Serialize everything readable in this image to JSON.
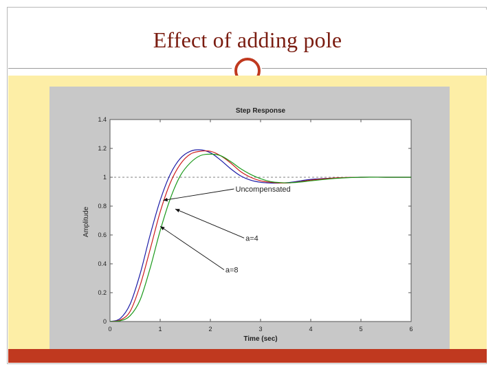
{
  "slide": {
    "title": "Effect of adding pole"
  },
  "colors": {
    "title": "#7a1c10",
    "accent": "#c0391f",
    "band": "#fdeea6",
    "figure_bg": "#c8c8c8"
  },
  "chart_data": {
    "type": "line",
    "title": "Step Response",
    "xlabel": "Time (sec)",
    "ylabel": "Amplitude",
    "xlim": [
      0,
      6
    ],
    "ylim": [
      0,
      1.4
    ],
    "xticks": [
      "0",
      "1",
      "2",
      "3",
      "4",
      "5",
      "6"
    ],
    "yticks": [
      "0",
      "0.2",
      "0.4",
      "0.6",
      "0.8",
      "1",
      "1.2",
      "1.4"
    ],
    "reference_line": 1,
    "grid": false,
    "series": [
      {
        "name": "Uncompensated",
        "color": "#1a1aa6",
        "x": [
          0,
          0.2,
          0.4,
          0.6,
          0.8,
          1.0,
          1.2,
          1.4,
          1.6,
          1.8,
          2.0,
          2.2,
          2.4,
          2.6,
          2.8,
          3.0,
          3.2,
          3.4,
          3.6,
          3.8,
          4.0,
          4.5,
          5.0,
          5.5,
          6.0
        ],
        "y": [
          0,
          0.02,
          0.12,
          0.33,
          0.6,
          0.84,
          1.02,
          1.13,
          1.18,
          1.19,
          1.17,
          1.12,
          1.06,
          1.01,
          0.98,
          0.965,
          0.96,
          0.96,
          0.965,
          0.975,
          0.985,
          0.995,
          1.0,
          1.0,
          1.0
        ]
      },
      {
        "name": "a=4",
        "color": "#cc1a1a",
        "x": [
          0,
          0.2,
          0.4,
          0.6,
          0.8,
          1.0,
          1.2,
          1.4,
          1.6,
          1.8,
          2.0,
          2.2,
          2.4,
          2.6,
          2.8,
          3.0,
          3.2,
          3.4,
          3.6,
          3.8,
          4.0,
          4.5,
          5.0,
          5.5,
          6.0
        ],
        "y": [
          0,
          0.01,
          0.07,
          0.25,
          0.5,
          0.76,
          0.96,
          1.09,
          1.16,
          1.18,
          1.18,
          1.15,
          1.1,
          1.04,
          1.0,
          0.975,
          0.965,
          0.96,
          0.962,
          0.97,
          0.98,
          0.995,
          1.0,
          1.0,
          1.0
        ]
      },
      {
        "name": "a=8",
        "color": "#1a991a",
        "x": [
          0,
          0.2,
          0.4,
          0.6,
          0.8,
          1.0,
          1.2,
          1.4,
          1.6,
          1.8,
          2.0,
          2.2,
          2.4,
          2.6,
          2.8,
          3.0,
          3.2,
          3.4,
          3.6,
          3.8,
          4.0,
          4.5,
          5.0,
          5.5,
          6.0
        ],
        "y": [
          0,
          0.005,
          0.04,
          0.15,
          0.37,
          0.63,
          0.85,
          1.01,
          1.1,
          1.15,
          1.16,
          1.15,
          1.11,
          1.06,
          1.02,
          0.99,
          0.97,
          0.963,
          0.962,
          0.967,
          0.975,
          0.992,
          1.0,
          1.0,
          1.0
        ]
      }
    ],
    "annotations": [
      {
        "text": "Uncompensated",
        "series": "Uncompensated",
        "target_x": 1.06,
        "target_y": 0.84,
        "text_x": 2.5,
        "text_y": 0.9
      },
      {
        "text": "a=4",
        "series": "a=4",
        "target_x": 1.3,
        "target_y": 0.78,
        "text_x": 2.7,
        "text_y": 0.56
      },
      {
        "text": "a=8",
        "series": "a=8",
        "target_x": 1.0,
        "target_y": 0.66,
        "text_x": 2.3,
        "text_y": 0.34
      }
    ]
  }
}
